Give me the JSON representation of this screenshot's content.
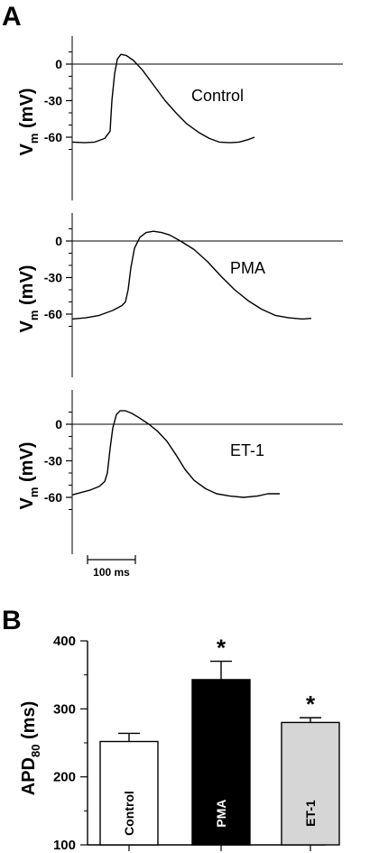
{
  "figure": {
    "panel_a_letter": "A",
    "panel_b_letter": "B"
  },
  "chart_data": [
    {
      "type": "line",
      "panel": "A",
      "label": "Control",
      "ylabel_main": "V",
      "ylabel_sub": "m",
      "ylabel_unit": " (mV)",
      "yticks": [
        0,
        -30,
        -60
      ],
      "ylim": [
        -70,
        13
      ],
      "xlim": [
        0,
        330
      ],
      "grid": false,
      "zero_line": true,
      "points": [
        [
          0,
          -64
        ],
        [
          14,
          -64.5
        ],
        [
          25,
          -64
        ],
        [
          36,
          -61
        ],
        [
          42,
          -55
        ],
        [
          44,
          -30
        ],
        [
          47,
          -8
        ],
        [
          50,
          4
        ],
        [
          54,
          8
        ],
        [
          60,
          7
        ],
        [
          68,
          3
        ],
        [
          78,
          -5
        ],
        [
          90,
          -17
        ],
        [
          103,
          -30
        ],
        [
          115,
          -40
        ],
        [
          127,
          -49
        ],
        [
          140,
          -56
        ],
        [
          152,
          -61
        ],
        [
          163,
          -64
        ],
        [
          175,
          -64.5
        ],
        [
          185,
          -64
        ],
        [
          195,
          -62
        ],
        [
          202,
          -60
        ]
      ],
      "color": "#000000"
    },
    {
      "type": "line",
      "panel": "A",
      "label": "PMA",
      "ylabel_main": "V",
      "ylabel_sub": "m",
      "ylabel_unit": " (mV)",
      "yticks": [
        0,
        -30,
        -60
      ],
      "ylim": [
        -70,
        13
      ],
      "xlim": [
        0,
        330
      ],
      "grid": false,
      "zero_line": true,
      "points": [
        [
          0,
          -64
        ],
        [
          15,
          -63
        ],
        [
          30,
          -61
        ],
        [
          45,
          -57
        ],
        [
          55,
          -53
        ],
        [
          59,
          -50
        ],
        [
          62,
          -40
        ],
        [
          65,
          -22
        ],
        [
          69,
          -6
        ],
        [
          75,
          3
        ],
        [
          82,
          7
        ],
        [
          90,
          8
        ],
        [
          99,
          7
        ],
        [
          108,
          5
        ],
        [
          120,
          0
        ],
        [
          135,
          -7
        ],
        [
          150,
          -17
        ],
        [
          165,
          -29
        ],
        [
          180,
          -40
        ],
        [
          195,
          -49
        ],
        [
          210,
          -56
        ],
        [
          225,
          -61
        ],
        [
          240,
          -63
        ],
        [
          255,
          -64
        ],
        [
          265,
          -63.5
        ]
      ],
      "color": "#000000"
    },
    {
      "type": "line",
      "panel": "A",
      "label": "ET-1",
      "ylabel_main": "V",
      "ylabel_sub": "m",
      "ylabel_unit": " (mV)",
      "yticks": [
        0,
        -30,
        -60
      ],
      "ylim": [
        -70,
        13
      ],
      "xlim": [
        0,
        330
      ],
      "grid": false,
      "zero_line": true,
      "points": [
        [
          0,
          -58
        ],
        [
          10,
          -56
        ],
        [
          20,
          -54
        ],
        [
          30,
          -51
        ],
        [
          36,
          -47
        ],
        [
          39,
          -40
        ],
        [
          42,
          -20
        ],
        [
          45,
          -3
        ],
        [
          49,
          8
        ],
        [
          53,
          11
        ],
        [
          59,
          11
        ],
        [
          66,
          9
        ],
        [
          75,
          5
        ],
        [
          85,
          0
        ],
        [
          95,
          -6
        ],
        [
          105,
          -14
        ],
        [
          115,
          -25
        ],
        [
          125,
          -37
        ],
        [
          135,
          -46
        ],
        [
          148,
          -53
        ],
        [
          160,
          -57
        ],
        [
          175,
          -59
        ],
        [
          190,
          -60
        ],
        [
          205,
          -59
        ],
        [
          217,
          -57
        ],
        [
          230,
          -57
        ]
      ],
      "color": "#000000"
    },
    {
      "type": "scalebar",
      "panel": "A",
      "label": "100 ms",
      "value_ms": 100
    },
    {
      "type": "bar",
      "panel": "B",
      "ylabel_main": "APD",
      "ylabel_sub": "80",
      "ylabel_unit": " (ms)",
      "ylim": [
        100,
        400
      ],
      "yticks": [
        100,
        200,
        300,
        400
      ],
      "grid": false,
      "categories": [
        "Control",
        "PMA",
        "ET-1"
      ],
      "values": [
        252,
        343,
        280
      ],
      "errors": [
        12,
        27,
        7
      ],
      "fills": [
        "#ffffff",
        "#000000",
        "#d6d6d6"
      ],
      "label_colors": [
        "#000000",
        "#ffffff",
        "#000000"
      ],
      "significance": [
        "",
        "*",
        "*"
      ]
    }
  ]
}
